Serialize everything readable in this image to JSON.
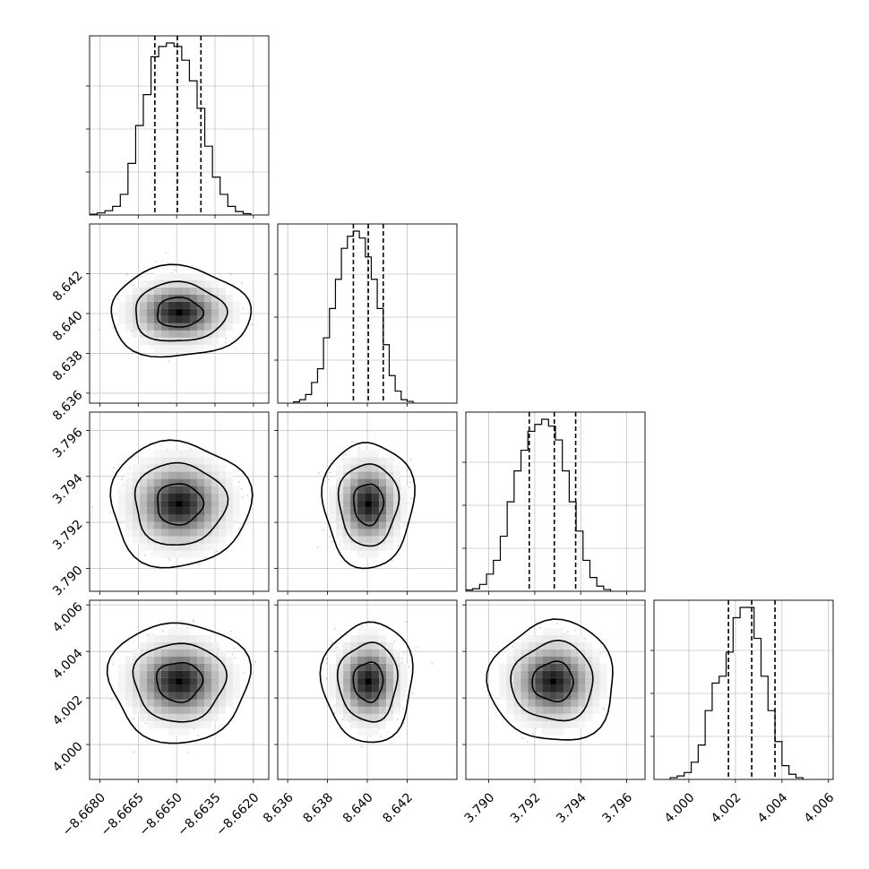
{
  "chart_data": {
    "type": "corner",
    "parameters": [
      {
        "range": [
          -8.6684,
          -8.6614
        ],
        "ticks": [
          -8.668,
          -8.6665,
          -8.665,
          -8.6635,
          -8.662
        ],
        "tick_labels": [
          "−8.6680",
          "−8.6665",
          "−8.6650",
          "−8.6635",
          "−8.6620"
        ],
        "quantiles": [
          -8.66585,
          -8.66497,
          -8.66405
        ],
        "mean": -8.6649,
        "sd": 0.0009,
        "hist_bins": [
          {
            "x0": -8.6684,
            "x1": -8.6681,
            "count": 0.005
          },
          {
            "x0": -8.6681,
            "x1": -8.6678,
            "count": 0.012
          },
          {
            "x0": -8.6678,
            "x1": -8.6675,
            "count": 0.025
          },
          {
            "x0": -8.6675,
            "x1": -8.6672,
            "count": 0.05
          },
          {
            "x0": -8.6672,
            "x1": -8.6669,
            "count": 0.12
          },
          {
            "x0": -8.6669,
            "x1": -8.6666,
            "count": 0.3
          },
          {
            "x0": -8.6666,
            "x1": -8.6663,
            "count": 0.52
          },
          {
            "x0": -8.6663,
            "x1": -8.666,
            "count": 0.7
          },
          {
            "x0": -8.666,
            "x1": -8.6657,
            "count": 0.92
          },
          {
            "x0": -8.6657,
            "x1": -8.6654,
            "count": 0.98
          },
          {
            "x0": -8.6654,
            "x1": -8.6651,
            "count": 1.0
          },
          {
            "x0": -8.6651,
            "x1": -8.6648,
            "count": 0.98
          },
          {
            "x0": -8.6648,
            "x1": -8.6645,
            "count": 0.9
          },
          {
            "x0": -8.6645,
            "x1": -8.6642,
            "count": 0.78
          },
          {
            "x0": -8.6642,
            "x1": -8.6639,
            "count": 0.62
          },
          {
            "x0": -8.6639,
            "x1": -8.6636,
            "count": 0.4
          },
          {
            "x0": -8.6636,
            "x1": -8.6633,
            "count": 0.22
          },
          {
            "x0": -8.6633,
            "x1": -8.663,
            "count": 0.12
          },
          {
            "x0": -8.663,
            "x1": -8.6627,
            "count": 0.05
          },
          {
            "x0": -8.6627,
            "x1": -8.6624,
            "count": 0.02
          },
          {
            "x0": -8.6624,
            "x1": -8.6621,
            "count": 0.008
          }
        ]
      },
      {
        "range": [
          8.6355,
          8.6445
        ],
        "ticks": [
          8.636,
          8.638,
          8.64,
          8.642
        ],
        "tick_labels": [
          "8.636",
          "8.638",
          "8.640",
          "8.642"
        ],
        "quantiles": [
          8.6393,
          8.64005,
          8.6408
        ],
        "mean": 8.64005,
        "sd": 0.00075,
        "hist_bins": [
          {
            "x0": 8.6363,
            "x1": 8.6366,
            "count": 0.008
          },
          {
            "x0": 8.6366,
            "x1": 8.6369,
            "count": 0.02
          },
          {
            "x0": 8.6369,
            "x1": 8.6372,
            "count": 0.05
          },
          {
            "x0": 8.6372,
            "x1": 8.6375,
            "count": 0.12
          },
          {
            "x0": 8.6375,
            "x1": 8.6378,
            "count": 0.2
          },
          {
            "x0": 8.6378,
            "x1": 8.6381,
            "count": 0.38
          },
          {
            "x0": 8.6381,
            "x1": 8.6384,
            "count": 0.55
          },
          {
            "x0": 8.6384,
            "x1": 8.6387,
            "count": 0.72
          },
          {
            "x0": 8.6387,
            "x1": 8.639,
            "count": 0.9
          },
          {
            "x0": 8.639,
            "x1": 8.6393,
            "count": 0.97
          },
          {
            "x0": 8.6393,
            "x1": 8.6396,
            "count": 1.0
          },
          {
            "x0": 8.6396,
            "x1": 8.6399,
            "count": 0.96
          },
          {
            "x0": 8.6399,
            "x1": 8.6402,
            "count": 0.85
          },
          {
            "x0": 8.6402,
            "x1": 8.6405,
            "count": 0.72
          },
          {
            "x0": 8.6405,
            "x1": 8.6408,
            "count": 0.55
          },
          {
            "x0": 8.6408,
            "x1": 8.6411,
            "count": 0.34
          },
          {
            "x0": 8.6411,
            "x1": 8.6414,
            "count": 0.16
          },
          {
            "x0": 8.6414,
            "x1": 8.6417,
            "count": 0.07
          },
          {
            "x0": 8.6417,
            "x1": 8.642,
            "count": 0.02
          },
          {
            "x0": 8.642,
            "x1": 8.6423,
            "count": 0.01
          }
        ]
      },
      {
        "range": [
          3.789,
          3.7968
        ],
        "ticks": [
          3.79,
          3.792,
          3.794,
          3.796
        ],
        "tick_labels": [
          "3.790",
          "3.792",
          "3.794",
          "3.796"
        ],
        "quantiles": [
          3.79176,
          3.79285,
          3.79378
        ],
        "mean": 3.7928,
        "sd": 0.0009,
        "hist_bins": [
          {
            "x0": 3.789,
            "x1": 3.7893,
            "count": 0.008
          },
          {
            "x0": 3.7893,
            "x1": 3.7896,
            "count": 0.015
          },
          {
            "x0": 3.7896,
            "x1": 3.7899,
            "count": 0.04
          },
          {
            "x0": 3.7899,
            "x1": 3.7902,
            "count": 0.1
          },
          {
            "x0": 3.7902,
            "x1": 3.7905,
            "count": 0.18
          },
          {
            "x0": 3.7905,
            "x1": 3.7908,
            "count": 0.32
          },
          {
            "x0": 3.7908,
            "x1": 3.7911,
            "count": 0.52
          },
          {
            "x0": 3.7911,
            "x1": 3.7914,
            "count": 0.7
          },
          {
            "x0": 3.7914,
            "x1": 3.7917,
            "count": 0.82
          },
          {
            "x0": 3.7917,
            "x1": 3.792,
            "count": 0.93
          },
          {
            "x0": 3.792,
            "x1": 3.7923,
            "count": 0.97
          },
          {
            "x0": 3.7923,
            "x1": 3.7926,
            "count": 1.0
          },
          {
            "x0": 3.7926,
            "x1": 3.7929,
            "count": 0.96
          },
          {
            "x0": 3.7929,
            "x1": 3.7932,
            "count": 0.88
          },
          {
            "x0": 3.7932,
            "x1": 3.7935,
            "count": 0.7
          },
          {
            "x0": 3.7935,
            "x1": 3.7938,
            "count": 0.52
          },
          {
            "x0": 3.7938,
            "x1": 3.7941,
            "count": 0.35
          },
          {
            "x0": 3.7941,
            "x1": 3.7944,
            "count": 0.18
          },
          {
            "x0": 3.7944,
            "x1": 3.7947,
            "count": 0.08
          },
          {
            "x0": 3.7947,
            "x1": 3.795,
            "count": 0.03
          },
          {
            "x0": 3.795,
            "x1": 3.7953,
            "count": 0.01
          }
        ]
      },
      {
        "range": [
          3.9985,
          4.0062
        ],
        "ticks": [
          4.0,
          4.002,
          4.004,
          4.006
        ],
        "tick_labels": [
          "4.000",
          "4.002",
          "4.004",
          "4.006"
        ],
        "quantiles": [
          4.0017,
          4.0027,
          4.0037
        ],
        "mean": 4.0027,
        "sd": 0.00085,
        "hist_bins": [
          {
            "x0": 3.9992,
            "x1": 3.9995,
            "count": 0.01
          },
          {
            "x0": 3.9995,
            "x1": 3.9998,
            "count": 0.02
          },
          {
            "x0": 3.9998,
            "x1": 4.0001,
            "count": 0.04
          },
          {
            "x0": 4.0001,
            "x1": 4.0004,
            "count": 0.1
          },
          {
            "x0": 4.0004,
            "x1": 4.0007,
            "count": 0.2
          },
          {
            "x0": 4.0007,
            "x1": 4.001,
            "count": 0.4
          },
          {
            "x0": 4.001,
            "x1": 4.0013,
            "count": 0.56
          },
          {
            "x0": 4.0013,
            "x1": 4.0016,
            "count": 0.6
          },
          {
            "x0": 4.0016,
            "x1": 4.0019,
            "count": 0.74
          },
          {
            "x0": 4.0019,
            "x1": 4.0022,
            "count": 0.94
          },
          {
            "x0": 4.0022,
            "x1": 4.0025,
            "count": 1.0
          },
          {
            "x0": 4.0025,
            "x1": 4.0028,
            "count": 1.0
          },
          {
            "x0": 4.0028,
            "x1": 4.0031,
            "count": 0.82
          },
          {
            "x0": 4.0031,
            "x1": 4.0034,
            "count": 0.6
          },
          {
            "x0": 4.0034,
            "x1": 4.0037,
            "count": 0.4
          },
          {
            "x0": 4.0037,
            "x1": 4.004,
            "count": 0.22
          },
          {
            "x0": 4.004,
            "x1": 4.0043,
            "count": 0.08
          },
          {
            "x0": 4.0043,
            "x1": 4.0046,
            "count": 0.03
          },
          {
            "x0": 4.0046,
            "x1": 4.0049,
            "count": 0.01
          }
        ]
      }
    ],
    "contour_levels": [
      0.39,
      0.86,
      0.99
    ],
    "grid": true,
    "colors": {
      "line": "#000000",
      "grid": "#b0b0b0",
      "scatter": "#8a8a8a"
    }
  }
}
